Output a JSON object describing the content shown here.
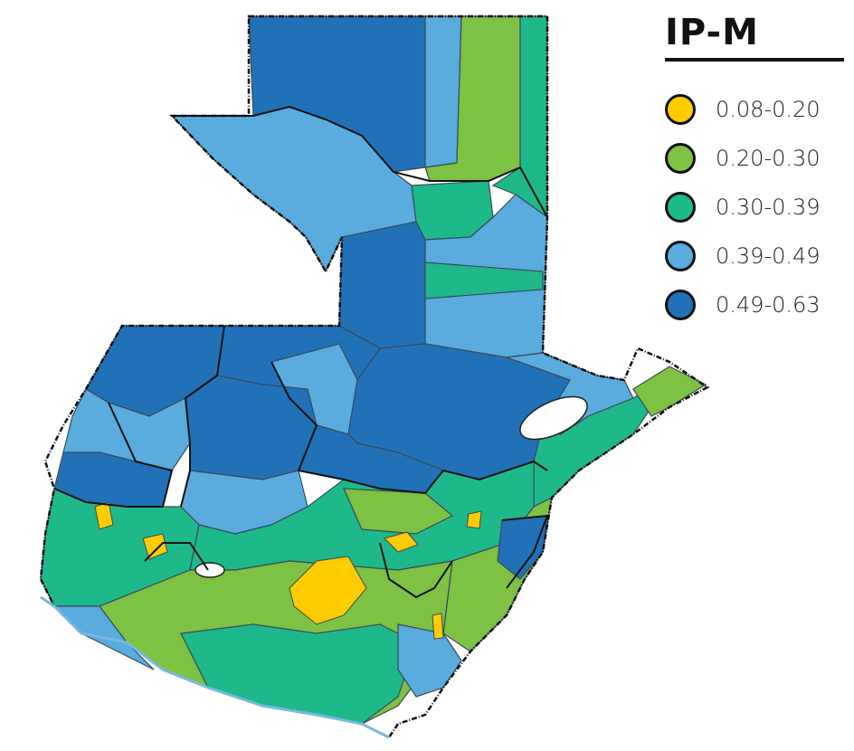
{
  "legend": {
    "title": "IP-M",
    "items": [
      {
        "range": "0.08-0.20",
        "color": "#ffcc00"
      },
      {
        "range": "0.20-0.30",
        "color": "#7dc242"
      },
      {
        "range": "0.30-0.39",
        "color": "#1db98a"
      },
      {
        "range": "0.39-0.49",
        "color": "#5aacde"
      },
      {
        "range": "0.49-0.63",
        "color": "#2171b8"
      }
    ]
  }
}
